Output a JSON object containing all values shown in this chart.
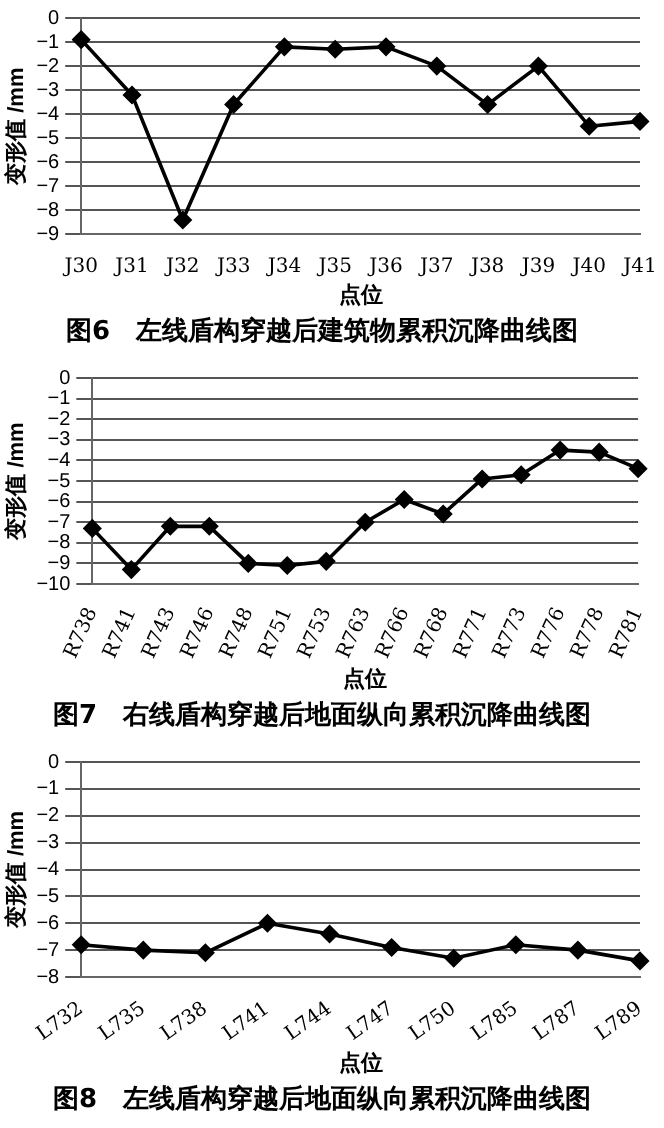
{
  "chart_data": [
    {
      "type": "line",
      "title": "图6　左线盾构穿越后建筑物累积沉降曲线图",
      "xlabel": "点位",
      "ylabel": "变形值 /mm",
      "categories": [
        "J30",
        "J31",
        "J32",
        "J33",
        "J34",
        "J35",
        "J36",
        "J37",
        "J38",
        "J39",
        "J40",
        "J41"
      ],
      "series": [
        {
          "color": "#000000",
          "values": [
            -0.9,
            -3.2,
            -8.4,
            -3.6,
            -1.2,
            -1.3,
            -1.2,
            -2.0,
            -3.6,
            -2.0,
            -4.5,
            -4.3
          ]
        }
      ],
      "ylim": [
        -9,
        0
      ],
      "yticks": [
        0,
        -1,
        -2,
        -3,
        -4,
        -5,
        -6,
        -7,
        -8,
        -9
      ],
      "grid": "y",
      "legend": false,
      "marker": "diamond",
      "line_style": "solid"
    },
    {
      "type": "line",
      "title": "图7　右线盾构穿越后地面纵向累积沉降曲线图",
      "xlabel": "点位",
      "ylabel": "变形值 /mm",
      "categories": [
        "R738",
        "R741",
        "R743",
        "R746",
        "R748",
        "R751",
        "R753",
        "R763",
        "R766",
        "R768",
        "R771",
        "R773",
        "R776",
        "R778",
        "R781"
      ],
      "series": [
        {
          "color": "#000000",
          "values": [
            -7.3,
            -9.3,
            -7.2,
            -7.2,
            -9.0,
            -9.1,
            -8.9,
            -7.0,
            -5.9,
            -6.6,
            -4.9,
            -4.7,
            -3.5,
            -3.6,
            -4.4
          ]
        }
      ],
      "ylim": [
        -10,
        0
      ],
      "yticks": [
        0,
        -1,
        -2,
        -3,
        -4,
        -5,
        -6,
        -7,
        -8,
        -9,
        -10
      ],
      "grid": "y",
      "legend": false,
      "marker": "diamond",
      "line_style": "solid"
    },
    {
      "type": "line",
      "title": "图8　左线盾构穿越后地面纵向累积沉降曲线图",
      "xlabel": "点位",
      "ylabel": "变形值 /mm",
      "categories": [
        "L732",
        "L735",
        "L738",
        "L741",
        "L744",
        "L747",
        "L750",
        "L785",
        "L787",
        "L789"
      ],
      "series": [
        {
          "color": "#000000",
          "values": [
            -6.8,
            -7.0,
            -7.1,
            -6.0,
            -6.4,
            -6.9,
            -7.3,
            -6.8,
            -7.0,
            -7.4
          ]
        }
      ],
      "ylim": [
        -8,
        0
      ],
      "yticks": [
        0,
        -1,
        -2,
        -3,
        -4,
        -5,
        -6,
        -7,
        -8
      ],
      "grid": "y",
      "legend": false,
      "marker": "diamond",
      "line_style": "solid"
    }
  ]
}
